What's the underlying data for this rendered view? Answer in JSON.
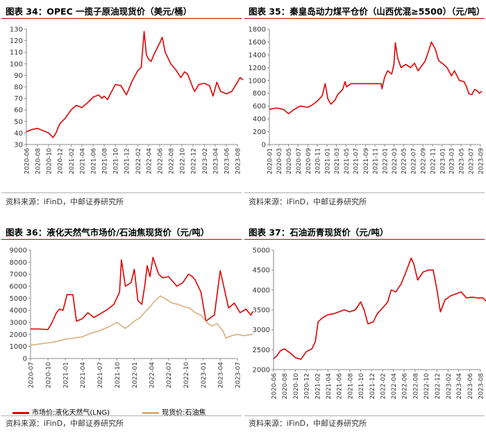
{
  "source_text": "资料来源：iFinD，中邮证券研究所",
  "chart_data": [
    {
      "id": "opec",
      "type": "line",
      "title": "图表 34：OPEC 一揽子原油现货价（美元/桶）",
      "ylim": [
        30,
        130
      ],
      "yticks": [
        30,
        40,
        50,
        60,
        70,
        80,
        90,
        100,
        110,
        120,
        130
      ],
      "xticks": [
        "2020-06",
        "2020-08",
        "2020-10",
        "2020-12",
        "2021-02",
        "2021-04",
        "2021-06",
        "2021-08",
        "2021-10",
        "2021-12",
        "2022-02",
        "2022-04",
        "2022-06",
        "2022-08",
        "2022-10",
        "2022-12",
        "2023-02",
        "2023-04",
        "2023-06",
        "2023-08"
      ],
      "grid": false,
      "series": [
        {
          "color": "#e00000",
          "x": [
            "2020-06-01",
            "2020-07-01",
            "2020-08-01",
            "2020-09-01",
            "2020-10-01",
            "2020-10-25",
            "2020-11-10",
            "2020-12-01",
            "2021-01-01",
            "2021-02-01",
            "2021-03-01",
            "2021-04-01",
            "2021-05-01",
            "2021-06-01",
            "2021-07-01",
            "2021-07-20",
            "2021-08-01",
            "2021-08-20",
            "2021-09-01",
            "2021-10-01",
            "2021-11-01",
            "2021-12-01",
            "2022-01-01",
            "2022-02-01",
            "2022-02-20",
            "2022-03-08",
            "2022-03-20",
            "2022-04-01",
            "2022-04-15",
            "2022-05-01",
            "2022-06-01",
            "2022-06-15",
            "2022-07-01",
            "2022-08-01",
            "2022-09-01",
            "2022-09-25",
            "2022-10-15",
            "2022-11-01",
            "2022-12-01",
            "2022-12-10",
            "2023-01-01",
            "2023-02-01",
            "2023-03-01",
            "2023-03-20",
            "2023-04-10",
            "2023-05-01",
            "2023-06-01",
            "2023-07-01",
            "2023-08-01",
            "2023-08-15",
            "2023-09-01"
          ],
          "y": [
            41,
            43,
            44,
            42,
            40,
            36,
            40,
            48,
            53,
            60,
            64,
            62,
            66,
            71,
            73,
            70,
            72,
            69,
            73,
            82,
            81,
            73,
            85,
            94,
            97,
            128,
            108,
            104,
            102,
            108,
            118,
            123,
            110,
            100,
            94,
            88,
            93,
            91,
            79,
            76,
            82,
            83,
            81,
            72,
            84,
            76,
            74,
            76,
            84,
            88,
            86
          ]
        }
      ]
    },
    {
      "id": "coal",
      "type": "line",
      "title": "图表 35：秦皇岛动力煤平仓价（山西优混≥5500）（元/吨）",
      "ylim": [
        0,
        1800
      ],
      "yticks": [
        0,
        200,
        400,
        600,
        800,
        1000,
        1200,
        1400,
        1600,
        1800
      ],
      "xticks": [
        "2020-01",
        "2020-03",
        "2020-05",
        "2020-07",
        "2020-09",
        "2020-11",
        "2021-01",
        "2021-03",
        "2021-05",
        "2021-07",
        "2021-09",
        "2021-11",
        "2022-01",
        "2022-03",
        "2022-05",
        "2022-07",
        "2022-09",
        "2022-11",
        "2023-01",
        "2023-03",
        "2023-05",
        "2023-07",
        "2023-09"
      ],
      "grid": false,
      "series": [
        {
          "color": "#e00000",
          "x": [
            "2020-01-01",
            "2020-02-15",
            "2020-04-01",
            "2020-05-01",
            "2020-06-01",
            "2020-07-15",
            "2020-09-01",
            "2020-10-01",
            "2020-11-01",
            "2020-12-01",
            "2020-12-20",
            "2021-01-05",
            "2021-01-25",
            "2021-02-20",
            "2021-03-10",
            "2021-04-10",
            "2021-04-25",
            "2021-05-05",
            "2021-06-01",
            "2021-08-01",
            "2021-10-01",
            "2021-11-15",
            "2021-12-10",
            "2021-12-15",
            "2022-01-01",
            "2022-01-20",
            "2022-02-15",
            "2022-03-01",
            "2022-03-10",
            "2022-03-25",
            "2022-04-15",
            "2022-05-15",
            "2022-06-15",
            "2022-07-10",
            "2022-08-01",
            "2022-09-15",
            "2022-10-10",
            "2022-10-25",
            "2022-11-20",
            "2022-12-10",
            "2023-01-10",
            "2023-02-01",
            "2023-03-01",
            "2023-03-20",
            "2023-04-20",
            "2023-05-20",
            "2023-06-05",
            "2023-06-20",
            "2023-07-10",
            "2023-07-25",
            "2023-08-10",
            "2023-08-25",
            "2023-09-10"
          ],
          "y": [
            550,
            570,
            545,
            480,
            540,
            600,
            580,
            620,
            680,
            760,
            950,
            720,
            630,
            690,
            780,
            860,
            980,
            900,
            950,
            950,
            950,
            950,
            950,
            870,
            1050,
            1150,
            1100,
            1250,
            1590,
            1350,
            1200,
            1250,
            1200,
            1270,
            1150,
            1300,
            1480,
            1600,
            1480,
            1310,
            1250,
            1200,
            1070,
            1150,
            1000,
            980,
            900,
            790,
            780,
            860,
            840,
            800,
            830
          ]
        }
      ]
    },
    {
      "id": "lng-coke",
      "type": "line",
      "title": "图表 36：液化天然气市场价/石油焦现货价（元/吨）",
      "ylim": [
        0,
        9000
      ],
      "yticks": [
        0,
        1000,
        2000,
        3000,
        4000,
        5000,
        6000,
        7000,
        8000,
        9000
      ],
      "xticks": [
        "2020-07",
        "2020-10",
        "2021-01",
        "2021-04",
        "2021-07",
        "2021-10",
        "2022-01",
        "2022-04",
        "2022-07",
        "2022-10",
        "2023-01",
        "2023-04",
        "2023-07"
      ],
      "grid": false,
      "legend": "bottom",
      "series": [
        {
          "name": "市场价:液化天然气(LNG)",
          "color": "#e00000",
          "x": [
            "2020-07-01",
            "2020-08-15",
            "2020-10-01",
            "2020-10-20",
            "2020-11-15",
            "2020-12-01",
            "2020-12-20",
            "2021-01-10",
            "2021-01-25",
            "2021-02-10",
            "2021-03-01",
            "2021-04-01",
            "2021-05-01",
            "2021-06-01",
            "2021-07-15",
            "2021-08-15",
            "2021-09-15",
            "2021-10-15",
            "2021-10-25",
            "2021-11-15",
            "2021-12-15",
            "2022-01-01",
            "2022-01-20",
            "2022-02-10",
            "2022-02-25",
            "2022-03-10",
            "2022-03-25",
            "2022-04-10",
            "2022-05-10",
            "2022-06-01",
            "2022-07-01",
            "2022-08-15",
            "2022-09-15",
            "2022-10-15",
            "2022-11-05",
            "2022-11-20",
            "2022-12-20",
            "2023-01-15",
            "2023-02-10",
            "2023-03-01",
            "2023-04-01",
            "2023-05-15",
            "2023-06-15",
            "2023-07-15",
            "2023-08-15",
            "2023-09-10",
            "2023-09-20"
          ],
          "y": [
            2450,
            2450,
            2400,
            2900,
            3800,
            4100,
            4000,
            5300,
            5300,
            5300,
            3100,
            3300,
            3800,
            3400,
            3800,
            4100,
            4500,
            5500,
            8200,
            6000,
            6300,
            7400,
            4800,
            4500,
            6000,
            7700,
            6800,
            8400,
            7000,
            6700,
            6800,
            6000,
            6300,
            7000,
            6800,
            6500,
            5500,
            3100,
            3400,
            3600,
            7300,
            4200,
            4600,
            3800,
            4100,
            3600,
            3900
          ]
        },
        {
          "name": "现货价:石油焦",
          "color": "#d9ae7a",
          "x": [
            "2020-07-01",
            "2020-08-15",
            "2020-10-01",
            "2020-11-15",
            "2021-01-01",
            "2021-02-15",
            "2021-04-01",
            "2021-05-15",
            "2021-07-01",
            "2021-08-15",
            "2021-10-01",
            "2021-11-15",
            "2022-01-01",
            "2022-02-01",
            "2022-03-01",
            "2022-04-01",
            "2022-04-20",
            "2022-05-20",
            "2022-06-20",
            "2022-07-20",
            "2022-08-20",
            "2022-09-20",
            "2022-10-20",
            "2022-11-20",
            "2022-12-20",
            "2023-01-20",
            "2023-02-15",
            "2023-03-15",
            "2023-04-15",
            "2023-05-01",
            "2023-06-01",
            "2023-07-01",
            "2023-08-01",
            "2023-09-20"
          ],
          "y": [
            1100,
            1200,
            1300,
            1400,
            1600,
            1700,
            1800,
            2100,
            2300,
            2600,
            3000,
            2500,
            3100,
            3400,
            3900,
            4400,
            4800,
            5200,
            4900,
            4600,
            4500,
            4300,
            4200,
            3800,
            3600,
            3000,
            2700,
            2900,
            2300,
            1700,
            1900,
            2000,
            1900,
            2000
          ]
        }
      ]
    },
    {
      "id": "asphalt",
      "type": "line",
      "title": "图表 37：石油沥青现货价（元/吨）",
      "ylim": [
        2000,
        5000
      ],
      "yticks": [
        2000,
        2500,
        3000,
        3500,
        4000,
        4500,
        5000
      ],
      "xticks": [
        "2020-06",
        "2020-08",
        "2020-10",
        "2020-12",
        "2021-02",
        "2021-04",
        "2021-06",
        "2021-08",
        "2021-10",
        "2021-12",
        "2022-02",
        "2022-04",
        "2022-06",
        "2022-08",
        "2022-10",
        "2022-12",
        "2023-02",
        "2023-04",
        "2023-06",
        "2023-08"
      ],
      "grid": false,
      "series": [
        {
          "color": "#e00000",
          "x": [
            "2020-06-01",
            "2020-06-20",
            "2020-07-10",
            "2020-08-01",
            "2020-09-01",
            "2020-10-01",
            "2020-11-01",
            "2020-12-01",
            "2021-01-01",
            "2021-01-20",
            "2021-02-05",
            "2021-03-01",
            "2021-04-01",
            "2021-05-01",
            "2021-06-01",
            "2021-07-01",
            "2021-08-01",
            "2021-09-01",
            "2021-10-01",
            "2021-10-20",
            "2021-11-10",
            "2021-12-10",
            "2022-01-01",
            "2022-02-01",
            "2022-03-01",
            "2022-03-20",
            "2022-04-15",
            "2022-05-15",
            "2022-06-15",
            "2022-07-10",
            "2022-07-25",
            "2022-08-15",
            "2022-09-15",
            "2022-10-15",
            "2022-11-10",
            "2022-12-01",
            "2022-12-20",
            "2023-01-15",
            "2023-02-15",
            "2023-03-15",
            "2023-04-15",
            "2023-05-15",
            "2023-06-15",
            "2023-07-15",
            "2023-08-15",
            "2023-09-01"
          ],
          "y": [
            2270,
            2350,
            2480,
            2520,
            2420,
            2300,
            2260,
            2450,
            2520,
            2700,
            3200,
            3300,
            3380,
            3400,
            3450,
            3500,
            3450,
            3500,
            3700,
            3500,
            3150,
            3200,
            3400,
            3550,
            3700,
            4000,
            3950,
            4150,
            4500,
            4800,
            4650,
            4250,
            4450,
            4500,
            4500,
            4000,
            3450,
            3750,
            3850,
            3900,
            3950,
            3800,
            3820,
            3800,
            3800,
            3720
          ]
        }
      ]
    }
  ]
}
